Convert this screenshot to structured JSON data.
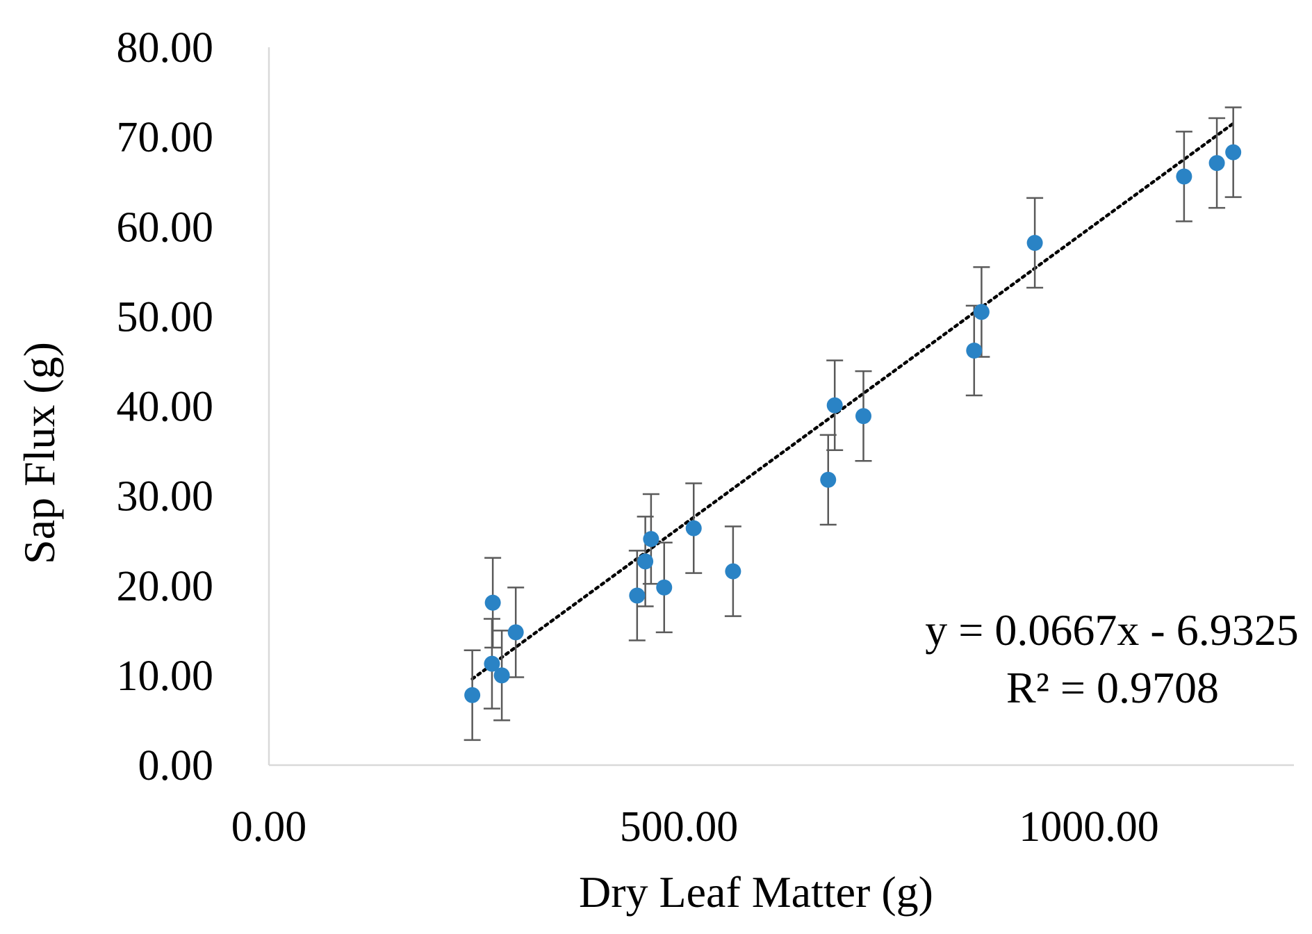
{
  "chart_data": {
    "type": "scatter",
    "title": "",
    "xlabel": "Dry Leaf Matter (g)",
    "ylabel": "Sap Flux (g)",
    "xlim": [
      0,
      1250
    ],
    "ylim": [
      0,
      80
    ],
    "x_ticks": [
      0,
      500,
      1000
    ],
    "x_tick_labels": [
      "0.00",
      "500.00",
      "1000.00"
    ],
    "y_ticks": [
      0,
      10,
      20,
      30,
      40,
      50,
      60,
      70,
      80
    ],
    "y_tick_labels": [
      "0.00",
      "10.00",
      "20.00",
      "30.00",
      "40.00",
      "50.00",
      "60.00",
      "70.00",
      "80.00"
    ],
    "grid": false,
    "legend": "none",
    "marker_color": "#2a83c5",
    "error_bar_color": "#5a5a5a",
    "error_bar": 5,
    "points": [
      {
        "x": 248,
        "y": 7.8
      },
      {
        "x": 272,
        "y": 11.3
      },
      {
        "x": 273,
        "y": 18.1
      },
      {
        "x": 284,
        "y": 10.0
      },
      {
        "x": 301,
        "y": 14.8
      },
      {
        "x": 449,
        "y": 18.9
      },
      {
        "x": 459,
        "y": 22.7
      },
      {
        "x": 466,
        "y": 25.2
      },
      {
        "x": 482,
        "y": 19.8
      },
      {
        "x": 518,
        "y": 26.4
      },
      {
        "x": 566,
        "y": 21.6
      },
      {
        "x": 682,
        "y": 31.8
      },
      {
        "x": 690,
        "y": 40.1
      },
      {
        "x": 725,
        "y": 38.9
      },
      {
        "x": 860,
        "y": 46.2
      },
      {
        "x": 869,
        "y": 50.5
      },
      {
        "x": 934,
        "y": 58.2
      },
      {
        "x": 1116,
        "y": 65.6
      },
      {
        "x": 1156,
        "y": 67.1
      },
      {
        "x": 1176,
        "y": 68.3
      }
    ],
    "trendline": {
      "type": "linear",
      "slope": 0.0667,
      "intercept": -6.9325,
      "x_range": [
        248,
        1176
      ],
      "style": "dotted",
      "color": "#000000"
    },
    "annotations": {
      "equation": "y = 0.0667x - 6.9325",
      "r_squared": "R² = 0.9708"
    }
  }
}
